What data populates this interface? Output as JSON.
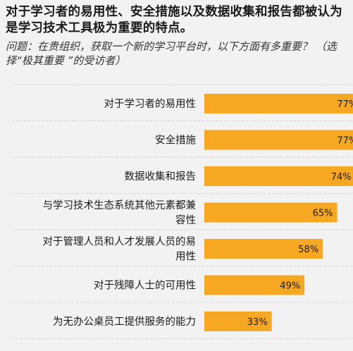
{
  "header": {
    "title": "对于学习者的易用性、安全措施以及数据收集和报告都被认为是学习技术工具极为重要的特点。",
    "question": "问题：在贵组织，获取一个新的学习平台时，以下方面有多重要？ （选择“极其重要 ”的受访者）"
  },
  "colors": {
    "bar": "#f7a823",
    "background": "#f2f2f2",
    "gridline": "#cfcfcf"
  },
  "chart_data": {
    "type": "bar",
    "orientation": "horizontal",
    "categories": [
      [
        "对于学习者的易用性"
      ],
      [
        "安全措施"
      ],
      [
        "数据收集和报告"
      ],
      [
        "与学习技术生态系统其他元素都兼",
        "容性"
      ],
      [
        "对于管理人员和人才发展人员的易",
        "用性"
      ],
      [
        "对于残障人士的可用性"
      ],
      [
        "为无办公桌员工提供服务的能力"
      ]
    ],
    "values": [
      77,
      77,
      74,
      65,
      58,
      49,
      33
    ],
    "value_labels": [
      "77%",
      "77%",
      "74%",
      "65%",
      "58%",
      "49%",
      "33%"
    ],
    "xlim": [
      0,
      100
    ],
    "grid": true
  }
}
